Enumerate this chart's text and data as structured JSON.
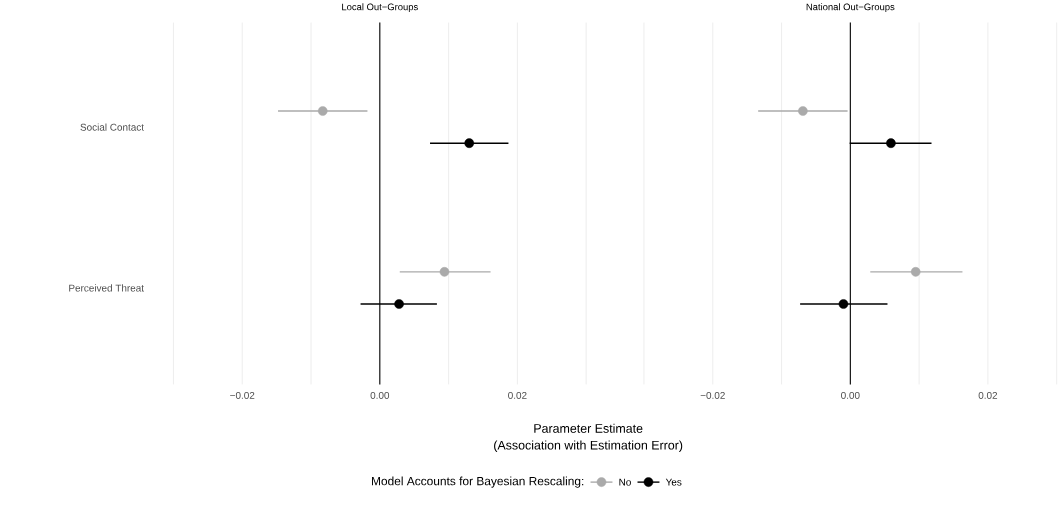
{
  "chart_data": [
    {
      "type": "scatter",
      "orientation": "horizontal",
      "title": "Local Out−Groups",
      "categories": [
        "Social Contact",
        "Perceived Threat"
      ],
      "series": [
        {
          "name": "No",
          "color": "#aaaaaa",
          "values": [
            -0.0083,
            0.0094
          ],
          "errors": [
            [
              -0.0148,
              -0.0018
            ],
            [
              0.0029,
              0.0161
            ]
          ]
        },
        {
          "name": "Yes",
          "color": "#000000",
          "values": [
            0.013,
            0.0028
          ],
          "errors": [
            [
              0.0073,
              0.0187
            ],
            [
              -0.0028,
              0.0083
            ]
          ]
        }
      ],
      "xlim": [
        -0.03,
        0.03
      ],
      "xticks": [
        {
          "value": -0.03,
          "label": null
        },
        {
          "value": -0.02,
          "label": "−0.02"
        },
        {
          "value": -0.01,
          "label": null
        },
        {
          "value": 0,
          "label": "0.00"
        },
        {
          "value": 0.01,
          "label": null
        },
        {
          "value": 0.02,
          "label": "0.02"
        },
        {
          "value": 0.03,
          "label": null
        }
      ],
      "ref_lines": [
        {
          "axis": "x",
          "value": 0,
          "color": "#000000"
        }
      ],
      "grid": "x",
      "marker": "circle",
      "legend": "bottom",
      "legend_title": "Model Accounts for Bayesian Rescaling:",
      "xlabel": "Parameter Estimate",
      "annotations": [
        "(Association with Estimation Error)"
      ]
    },
    {
      "type": "scatter",
      "orientation": "horizontal",
      "title": "National Out−Groups",
      "categories": [
        null,
        null
      ],
      "series": [
        {
          "color": "#aaaaaa",
          "values": [
            -0.0069,
            0.0095
          ],
          "errors": [
            [
              -0.0134,
              -0.0004
            ],
            [
              0.0029,
              0.0163
            ]
          ]
        },
        {
          "color": "#000000",
          "values": [
            0.0059,
            -0.001
          ],
          "errors": [
            [
              -0.0001,
              0.0118
            ],
            [
              -0.0073,
              0.0054
            ]
          ]
        }
      ],
      "xlim": [
        -0.03,
        0.03
      ],
      "xticks": [
        {
          "value": -0.03,
          "label": null
        },
        {
          "value": -0.02,
          "label": "−0.02"
        },
        {
          "value": -0.01,
          "label": null
        },
        {
          "value": 0,
          "label": "0.00"
        },
        {
          "value": 0.01,
          "label": null
        },
        {
          "value": 0.02,
          "label": "0.02"
        },
        {
          "value": 0.03,
          "label": null
        }
      ],
      "ref_lines": [
        {
          "axis": "x",
          "value": 0,
          "color": "#000000"
        }
      ],
      "grid": "x",
      "marker": "circle",
      "tick_labels": "x"
    }
  ]
}
